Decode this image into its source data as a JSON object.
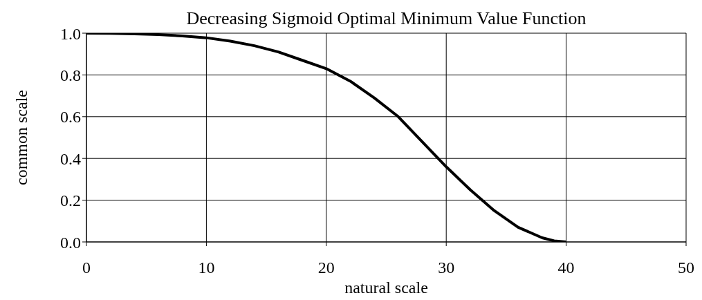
{
  "chart_data": {
    "type": "line",
    "title": "Decreasing Sigmoid Optimal Minimum Value Function",
    "xlabel": "natural scale",
    "ylabel": "common scale",
    "x": [
      0,
      2,
      4,
      6,
      8,
      10,
      12,
      14,
      16,
      18,
      20,
      22,
      24,
      26,
      28,
      30,
      32,
      34,
      36,
      38,
      39,
      40
    ],
    "series": [
      {
        "color": "#000000",
        "values": [
          1.0,
          0.999,
          0.997,
          0.993,
          0.987,
          0.978,
          0.962,
          0.94,
          0.91,
          0.87,
          0.83,
          0.77,
          0.69,
          0.6,
          0.48,
          0.36,
          0.25,
          0.15,
          0.07,
          0.02,
          0.005,
          0.0
        ]
      }
    ],
    "xlim": [
      0,
      50
    ],
    "xticks": [
      0,
      10,
      20,
      30,
      40,
      50
    ],
    "ylim": [
      0,
      1
    ],
    "yticks": [
      {
        "value": 0,
        "label": "0.0"
      },
      {
        "value": 0.2,
        "label": "0.2"
      },
      {
        "value": 0.4,
        "label": "0.4"
      },
      {
        "value": 0.6,
        "label": "0.6"
      },
      {
        "value": 0.8,
        "label": "0.8"
      },
      {
        "value": 1,
        "label": "1.0"
      }
    ],
    "grid": true,
    "marker": "none",
    "line_style": "solid",
    "legend": false
  }
}
